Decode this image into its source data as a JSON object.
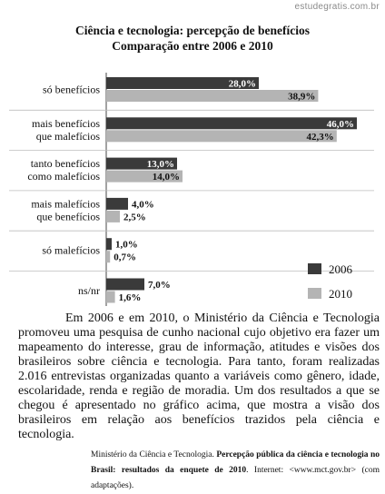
{
  "watermark": "estudegratis.com.br",
  "chart_data": {
    "type": "bar",
    "orientation": "horizontal",
    "title": "Ciência e tecnologia: percepção de benefícios",
    "subtitle": "Comparação entre 2006 e 2010",
    "categories": [
      [
        "só benefícios"
      ],
      [
        "mais benefícios",
        "que malefícios"
      ],
      [
        "tanto benefícios",
        "como malefícios"
      ],
      [
        "mais malefícios",
        "que benefícios"
      ],
      [
        "só malefícios"
      ],
      [
        "ns/nr"
      ]
    ],
    "series": [
      {
        "name": "2006",
        "values": [
          28.0,
          46.0,
          13.0,
          4.0,
          1.0,
          7.0
        ],
        "labels": [
          "28,0%",
          "46,0%",
          "13,0%",
          "4,0%",
          "1,0%",
          "7,0%"
        ],
        "color": "#3a3a3a"
      },
      {
        "name": "2010",
        "values": [
          38.9,
          42.3,
          14.0,
          2.5,
          0.7,
          1.6
        ],
        "labels": [
          "38,9%",
          "42,3%",
          "14,0%",
          "2,5%",
          "0,7%",
          "1,6%"
        ],
        "color": "#b4b4b4"
      }
    ],
    "xlim": [
      0,
      48
    ],
    "legend_position": "bottom-right",
    "grid": "horizontal separators"
  },
  "paragraph": "Em 2006 e em 2010, o Ministério da Ciência e Tecnologia promoveu uma pesquisa de cunho nacional cujo objetivo era fazer um mapeamento do interesse, grau de informação, atitudes e visões dos brasileiros sobre ciência e tecnologia. Para tanto, foram realizadas 2.016 entrevistas organizadas quanto a variáveis como gênero, idade, escolaridade, renda e região de moradia. Um dos resultados a que se chegou é apresentado no gráfico acima, que mostra a visão dos brasileiros em relação aos benefícios trazidos pela ciência e tecnologia.",
  "source": {
    "prefix": "Ministério da Ciência e Tecnologia.",
    "bold": "Percepção pública da ciência e tecnologia no Brasil: resultados da enquete de 2010",
    "suffix": ". Internet: <www.mct.gov.br> (com adaptações)."
  }
}
